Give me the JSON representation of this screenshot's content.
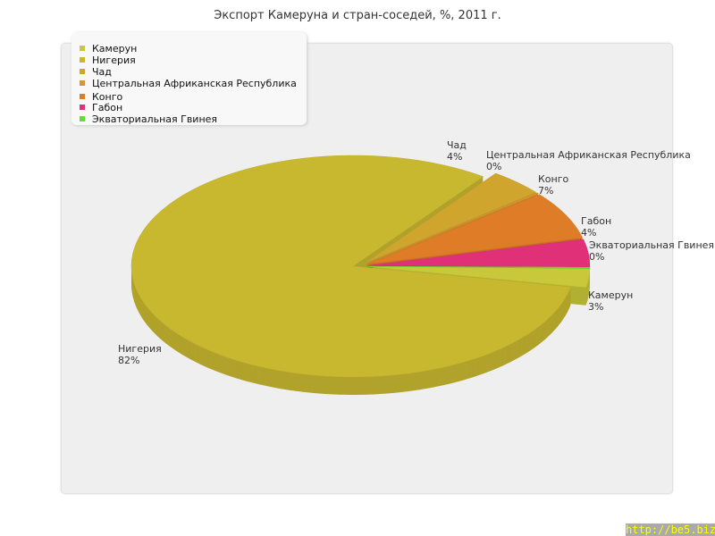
{
  "chart_data": {
    "type": "pie",
    "title": "Экспорт Камеруна и стран-соседей, %, 2011 г.",
    "legend_position": "top-left",
    "slices": [
      {
        "label": "Камерун",
        "value": 3,
        "value_label": "3%",
        "color": "#c8c83a"
      },
      {
        "label": "Нигерия",
        "value": 82,
        "value_label": "82%",
        "color": "#c8b830"
      },
      {
        "label": "Чад",
        "value": 4,
        "value_label": "4%",
        "color": "#d0a52e"
      },
      {
        "label": "Центральная Африканская Республика",
        "value": 0,
        "value_label": "0%",
        "color": "#d8962e"
      },
      {
        "label": "Конго",
        "value": 7,
        "value_label": "7%",
        "color": "#de7c28"
      },
      {
        "label": "Габон",
        "value": 4,
        "value_label": "4%",
        "color": "#e03078"
      },
      {
        "label": "Экваториальная Гвинея",
        "value": 0,
        "value_label": "0%",
        "color": "#5de030"
      }
    ]
  },
  "watermark": "http://be5.biz/"
}
